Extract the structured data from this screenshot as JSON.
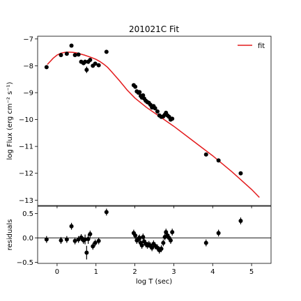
{
  "chart_data": [
    {
      "type": "scatter",
      "title": "201021C Fit",
      "xlabel": "",
      "ylabel": "log Flux (erg cm⁻² s⁻¹)",
      "xlim": [
        -0.5,
        5.5
      ],
      "ylim": [
        -13.2,
        -6.9
      ],
      "yticks": [
        -13,
        -12,
        -11,
        -10,
        -9,
        -8,
        -7
      ],
      "legend": {
        "entries": [
          "fit"
        ],
        "position": "top-right"
      },
      "colors": {
        "data": "#000000",
        "fit": "#e31a1c"
      },
      "grid": false,
      "series": [
        {
          "kind": "errorbar",
          "x": [
            -0.27,
            0.1,
            0.25,
            0.37,
            0.46,
            0.55,
            0.62,
            0.68,
            0.72,
            0.76,
            0.8,
            0.85,
            0.92,
            0.98,
            1.07,
            1.27,
            1.97,
            2.01,
            2.05,
            2.09,
            2.12,
            2.15,
            2.18,
            2.21,
            2.24,
            2.28,
            2.32,
            2.36,
            2.4,
            2.44,
            2.48,
            2.52,
            2.58,
            2.63,
            2.68,
            2.73,
            2.77,
            2.8,
            2.84,
            2.88,
            2.92,
            2.96,
            3.83,
            4.15,
            4.72
          ],
          "y": [
            -8.05,
            -7.6,
            -7.55,
            -7.25,
            -7.6,
            -7.58,
            -7.85,
            -7.9,
            -7.85,
            -8.15,
            -7.85,
            -7.78,
            -8.0,
            -7.92,
            -7.98,
            -7.48,
            -8.72,
            -8.78,
            -8.95,
            -9.0,
            -8.98,
            -9.12,
            -9.18,
            -9.1,
            -9.22,
            -9.3,
            -9.35,
            -9.38,
            -9.45,
            -9.55,
            -9.5,
            -9.58,
            -9.7,
            -9.85,
            -9.9,
            -9.88,
            -9.82,
            -9.75,
            -9.85,
            -9.9,
            -10.0,
            -9.97,
            -11.3,
            -11.52,
            -12.0
          ],
          "yerr": [
            0.05,
            0.05,
            0.05,
            0.05,
            0.05,
            0.05,
            0.05,
            0.05,
            0.08,
            0.12,
            0.08,
            0.05,
            0.05,
            0.05,
            0.05,
            0.05,
            0.05,
            0.05,
            0.05,
            0.05,
            0.05,
            0.05,
            0.05,
            0.05,
            0.05,
            0.05,
            0.05,
            0.05,
            0.05,
            0.05,
            0.05,
            0.05,
            0.05,
            0.05,
            0.05,
            0.05,
            0.05,
            0.05,
            0.05,
            0.05,
            0.05,
            0.05,
            0.05,
            0.05,
            0.05
          ]
        },
        {
          "name": "fit",
          "kind": "line",
          "x": [
            -0.25,
            -0.1,
            0.0,
            0.1,
            0.2,
            0.3,
            0.4,
            0.5,
            0.6,
            0.7,
            0.8,
            0.9,
            1.0,
            1.1,
            1.2,
            1.3,
            1.4,
            1.6,
            1.8,
            2.0,
            2.3,
            2.6,
            3.0,
            3.5,
            4.0,
            4.5,
            5.0,
            5.2
          ],
          "y": [
            -7.95,
            -7.72,
            -7.6,
            -7.53,
            -7.5,
            -7.49,
            -7.5,
            -7.52,
            -7.56,
            -7.6,
            -7.65,
            -7.7,
            -7.76,
            -7.84,
            -7.94,
            -8.06,
            -8.22,
            -8.55,
            -8.9,
            -9.2,
            -9.55,
            -9.85,
            -10.25,
            -10.8,
            -11.35,
            -11.95,
            -12.6,
            -12.9
          ]
        }
      ]
    },
    {
      "type": "scatter",
      "xlabel": "log T (sec)",
      "ylabel": "residuals",
      "xlim": [
        -0.5,
        5.5
      ],
      "ylim": [
        -0.52,
        0.65
      ],
      "xticks": [
        0,
        1,
        2,
        3,
        4,
        5
      ],
      "yticks": [
        -0.5,
        0.0,
        0.5
      ],
      "ytick_labels": [
        "−0.5",
        "0.0",
        "0.5"
      ],
      "reference_line": 0.0,
      "grid": false,
      "series": [
        {
          "kind": "errorbar",
          "x": [
            -0.27,
            0.1,
            0.25,
            0.37,
            0.46,
            0.55,
            0.62,
            0.68,
            0.72,
            0.76,
            0.8,
            0.85,
            0.92,
            0.98,
            1.07,
            1.27,
            1.97,
            2.01,
            2.05,
            2.09,
            2.12,
            2.15,
            2.18,
            2.21,
            2.24,
            2.28,
            2.32,
            2.36,
            2.4,
            2.44,
            2.48,
            2.52,
            2.58,
            2.63,
            2.68,
            2.73,
            2.77,
            2.8,
            2.84,
            2.88,
            2.92,
            2.96,
            3.83,
            4.15,
            4.72
          ],
          "y": [
            -0.03,
            -0.05,
            -0.03,
            0.24,
            -0.06,
            -0.03,
            0.01,
            -0.05,
            -0.03,
            -0.3,
            -0.02,
            0.08,
            -0.17,
            -0.1,
            -0.06,
            0.53,
            0.1,
            0.05,
            -0.05,
            -0.02,
            0.0,
            -0.1,
            -0.15,
            0.02,
            -0.07,
            -0.12,
            -0.15,
            -0.13,
            -0.16,
            -0.2,
            -0.12,
            -0.16,
            -0.2,
            -0.25,
            -0.22,
            -0.1,
            0.02,
            0.12,
            0.05,
            0.0,
            -0.05,
            0.12,
            -0.1,
            0.1,
            0.35
          ]
        }
      ]
    }
  ]
}
